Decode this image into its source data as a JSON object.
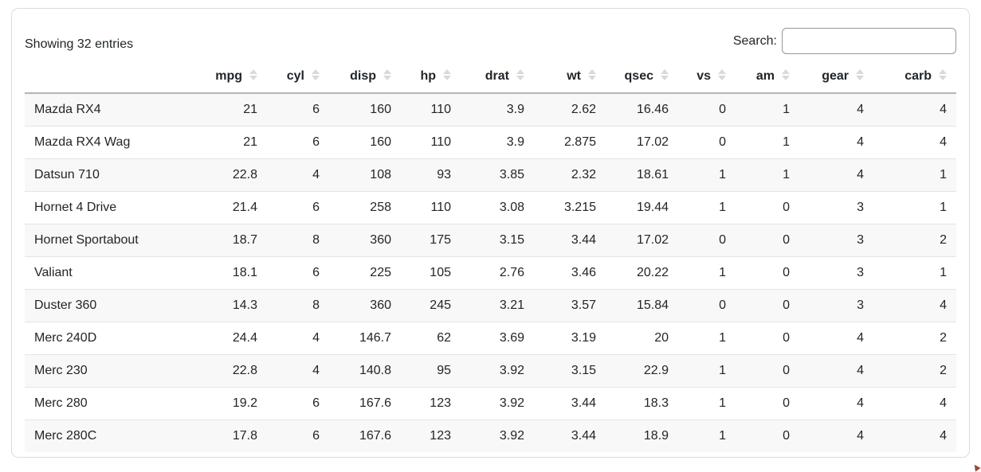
{
  "card": {
    "info_text": "Showing 32 entries",
    "search": {
      "label": "Search:",
      "value": ""
    }
  },
  "table": {
    "columns": [
      "mpg",
      "cyl",
      "disp",
      "hp",
      "drat",
      "wt",
      "qsec",
      "vs",
      "am",
      "gear",
      "carb"
    ],
    "rows": [
      {
        "name": "Mazda RX4",
        "values": [
          "21",
          "6",
          "160",
          "110",
          "3.9",
          "2.62",
          "16.46",
          "0",
          "1",
          "4",
          "4"
        ]
      },
      {
        "name": "Mazda RX4 Wag",
        "values": [
          "21",
          "6",
          "160",
          "110",
          "3.9",
          "2.875",
          "17.02",
          "0",
          "1",
          "4",
          "4"
        ]
      },
      {
        "name": "Datsun 710",
        "values": [
          "22.8",
          "4",
          "108",
          "93",
          "3.85",
          "2.32",
          "18.61",
          "1",
          "1",
          "4",
          "1"
        ]
      },
      {
        "name": "Hornet 4 Drive",
        "values": [
          "21.4",
          "6",
          "258",
          "110",
          "3.08",
          "3.215",
          "19.44",
          "1",
          "0",
          "3",
          "1"
        ]
      },
      {
        "name": "Hornet Sportabout",
        "values": [
          "18.7",
          "8",
          "360",
          "175",
          "3.15",
          "3.44",
          "17.02",
          "0",
          "0",
          "3",
          "2"
        ]
      },
      {
        "name": "Valiant",
        "values": [
          "18.1",
          "6",
          "225",
          "105",
          "2.76",
          "3.46",
          "20.22",
          "1",
          "0",
          "3",
          "1"
        ]
      },
      {
        "name": "Duster 360",
        "values": [
          "14.3",
          "8",
          "360",
          "245",
          "3.21",
          "3.57",
          "15.84",
          "0",
          "0",
          "3",
          "4"
        ]
      },
      {
        "name": "Merc 240D",
        "values": [
          "24.4",
          "4",
          "146.7",
          "62",
          "3.69",
          "3.19",
          "20",
          "1",
          "0",
          "4",
          "2"
        ]
      },
      {
        "name": "Merc 230",
        "values": [
          "22.8",
          "4",
          "140.8",
          "95",
          "3.92",
          "3.15",
          "22.9",
          "1",
          "0",
          "4",
          "2"
        ]
      },
      {
        "name": "Merc 280",
        "values": [
          "19.2",
          "6",
          "167.6",
          "123",
          "3.92",
          "3.44",
          "18.3",
          "1",
          "0",
          "4",
          "4"
        ]
      },
      {
        "name": "Merc 280C",
        "values": [
          "17.8",
          "6",
          "167.6",
          "123",
          "3.92",
          "3.44",
          "18.9",
          "1",
          "0",
          "4",
          "4"
        ]
      }
    ]
  },
  "colors": {
    "text": "#212529",
    "stripe": "#f8f8f8",
    "row_border": "#e4e4e4",
    "header_border": "#b5b5b5",
    "card_border": "#dcdcdc",
    "sort_icon": "#d9d9d9"
  }
}
